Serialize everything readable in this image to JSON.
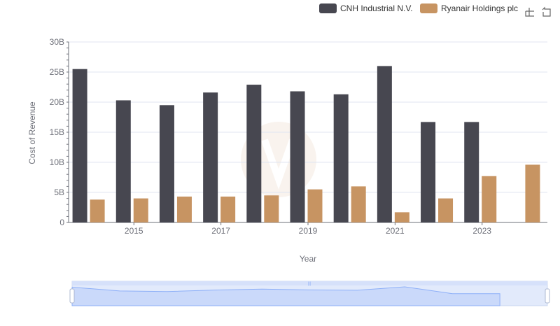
{
  "chart_data": {
    "type": "bar",
    "title": "",
    "xlabel": "Year",
    "ylabel": "Cost of Revenue",
    "categories": [
      "2014",
      "2015",
      "2016",
      "2017",
      "2018",
      "2019",
      "2020",
      "2021",
      "2022",
      "2023",
      "2024"
    ],
    "x_tick_labels": [
      "2015",
      "2017",
      "2019",
      "2021",
      "2023"
    ],
    "y_tick_labels": [
      "0",
      "5B",
      "10B",
      "15B",
      "20B",
      "25B",
      "30B"
    ],
    "ylim": [
      0,
      30000000000
    ],
    "grid": true,
    "legend_position": "top-right",
    "series": [
      {
        "name": "CNH Industrial N.V.",
        "color": "#474750",
        "values": [
          25500000000,
          20300000000,
          19500000000,
          21600000000,
          22900000000,
          21800000000,
          21300000000,
          26000000000,
          16700000000,
          16700000000,
          null
        ]
      },
      {
        "name": "Ryanair Holdings plc",
        "color": "#c79462",
        "values": [
          3800000000,
          4000000000,
          4300000000,
          4300000000,
          4500000000,
          5500000000,
          6000000000,
          1700000000,
          4000000000,
          7700000000,
          9600000000
        ]
      }
    ]
  },
  "toolbar": {
    "icons": [
      "zoom-icon",
      "restore-icon"
    ]
  },
  "zoom_slider": {
    "handle_color": "#8fb0f7",
    "fill_color": "#d6e1fa"
  }
}
